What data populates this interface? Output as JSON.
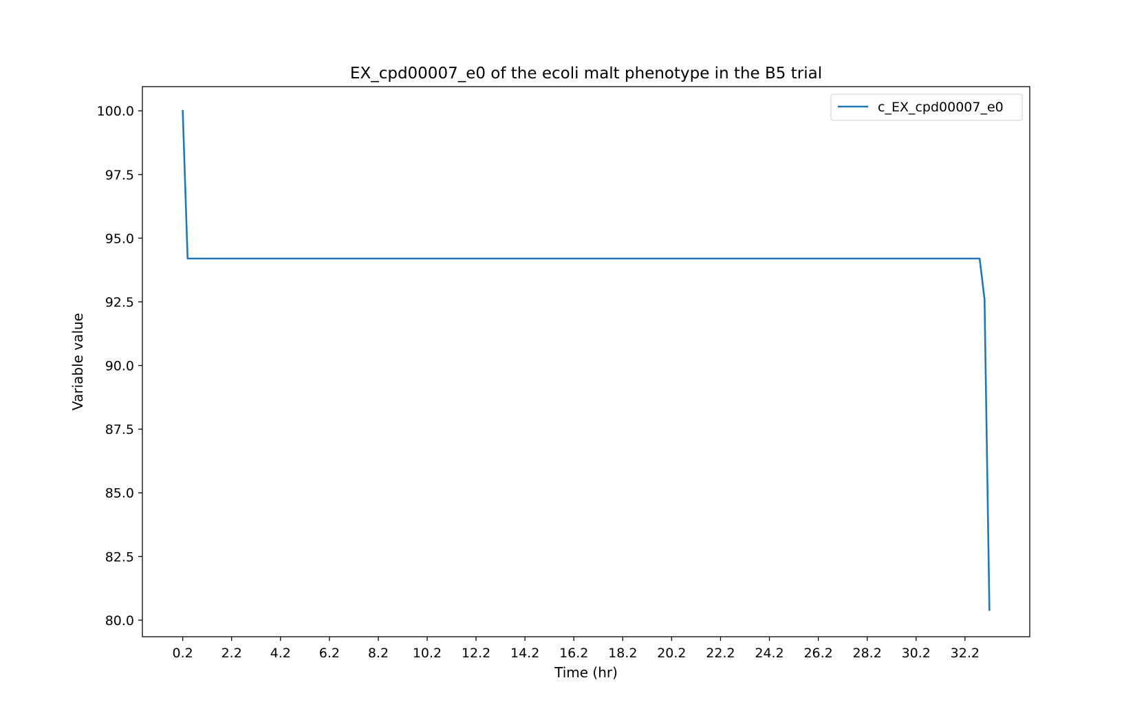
{
  "chart_data": {
    "type": "line",
    "title": "EX_cpd00007_e0 of the ecoli malt phenotype in the B5 trial",
    "xlabel": "Time (hr)",
    "ylabel": "Variable value",
    "xlim": [
      -1.45,
      34.85
    ],
    "ylim": [
      79.35,
      100.95
    ],
    "x_ticks": [
      0.2,
      2.2,
      4.2,
      6.2,
      8.2,
      10.2,
      12.2,
      14.2,
      16.2,
      18.2,
      20.2,
      22.2,
      24.2,
      26.2,
      28.2,
      30.2,
      32.2
    ],
    "x_tick_labels": [
      "0.2",
      "2.2",
      "4.2",
      "6.2",
      "8.2",
      "10.2",
      "12.2",
      "14.2",
      "16.2",
      "18.2",
      "20.2",
      "22.2",
      "24.2",
      "26.2",
      "28.2",
      "30.2",
      "32.2"
    ],
    "y_ticks": [
      80.0,
      82.5,
      85.0,
      87.5,
      90.0,
      92.5,
      95.0,
      97.5,
      100.0
    ],
    "y_tick_labels": [
      "80.0",
      "82.5",
      "85.0",
      "87.5",
      "90.0",
      "92.5",
      "95.0",
      "97.5",
      "100.0"
    ],
    "grid": false,
    "legend": "upper-right",
    "series": [
      {
        "name": "c_EX_cpd00007_e0",
        "color": "#1f77b4",
        "x": [
          0.2,
          0.4,
          32.8,
          33.0,
          33.2
        ],
        "y": [
          100.0,
          94.2,
          94.2,
          92.6,
          80.4
        ]
      }
    ]
  }
}
